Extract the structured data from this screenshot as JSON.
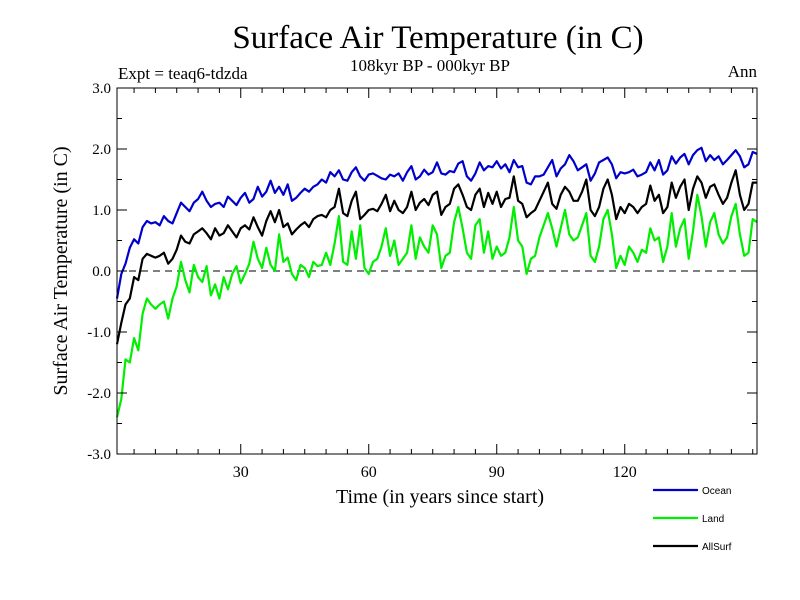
{
  "chart_data": {
    "type": "line",
    "title": "Surface Air Temperature (in C)",
    "subtitle": "108kyr BP - 000kyr BP",
    "experiment_label": "Expt = teaq6-tdzda",
    "period_label": "Ann",
    "xlabel": "Time (in years since start)",
    "ylabel": "Surface Air Temperature (in C)",
    "xlim": [
      1,
      151
    ],
    "ylim": [
      -3.0,
      3.0
    ],
    "x_ticks": [
      30,
      60,
      90,
      120
    ],
    "x_tick_labels": [
      "30",
      "60",
      "90",
      "120"
    ],
    "y_ticks": [
      -3.0,
      -2.0,
      -1.0,
      0.0,
      1.0,
      2.0,
      3.0
    ],
    "y_tick_labels": [
      "-3.0",
      "-2.0",
      "-1.0",
      "0.0",
      "1.0",
      "2.0",
      "3.0"
    ],
    "zero_line": true,
    "grid": false,
    "legend_position": "bottom-right",
    "x_start": 1,
    "x_step": 1,
    "series": [
      {
        "name": "Ocean",
        "color": "#0000cc",
        "values": [
          -0.45,
          -0.05,
          0.12,
          0.38,
          0.52,
          0.45,
          0.72,
          0.82,
          0.78,
          0.8,
          0.75,
          0.9,
          0.82,
          0.78,
          0.95,
          1.12,
          1.05,
          0.98,
          1.12,
          1.18,
          1.3,
          1.15,
          1.05,
          1.1,
          1.12,
          1.05,
          1.22,
          1.15,
          1.08,
          1.2,
          1.28,
          1.12,
          1.18,
          1.38,
          1.22,
          1.3,
          1.48,
          1.28,
          1.38,
          1.25,
          1.42,
          1.15,
          1.2,
          1.28,
          1.35,
          1.3,
          1.38,
          1.42,
          1.5,
          1.45,
          1.62,
          1.55,
          1.65,
          1.5,
          1.48,
          1.62,
          1.7,
          1.55,
          1.48,
          1.58,
          1.6,
          1.56,
          1.52,
          1.5,
          1.58,
          1.55,
          1.6,
          1.48,
          1.62,
          1.72,
          1.5,
          1.55,
          1.66,
          1.58,
          1.62,
          1.78,
          1.6,
          1.58,
          1.64,
          1.62,
          1.76,
          1.8,
          1.55,
          1.48,
          1.6,
          1.78,
          1.65,
          1.72,
          1.7,
          1.8,
          1.68,
          1.75,
          1.62,
          1.82,
          1.7,
          1.72,
          1.45,
          1.42,
          1.55,
          1.55,
          1.58,
          1.7,
          1.82,
          1.55,
          1.68,
          1.75,
          1.9,
          1.8,
          1.65,
          1.7,
          1.75,
          1.48,
          1.6,
          1.78,
          1.82,
          1.86,
          1.75,
          1.52,
          1.62,
          1.6,
          1.62,
          1.66,
          1.55,
          1.58,
          1.62,
          1.78,
          1.65,
          1.82,
          1.58,
          1.65,
          1.88,
          1.76,
          1.86,
          1.92,
          1.75,
          1.9,
          1.98,
          2.02,
          1.8,
          1.9,
          1.82,
          1.88,
          1.75,
          1.82,
          1.9,
          1.98,
          1.88,
          1.7,
          1.75,
          1.95,
          1.92
        ]
      },
      {
        "name": "Land",
        "color": "#00ee00",
        "values": [
          -2.4,
          -2.1,
          -1.45,
          -1.5,
          -1.1,
          -1.3,
          -0.7,
          -0.45,
          -0.55,
          -0.62,
          -0.55,
          -0.5,
          -0.78,
          -0.45,
          -0.25,
          0.15,
          -0.15,
          -0.35,
          0.1,
          -0.1,
          -0.18,
          0.08,
          -0.4,
          -0.22,
          -0.45,
          -0.1,
          -0.3,
          -0.05,
          0.08,
          -0.2,
          -0.05,
          0.12,
          0.48,
          0.2,
          0.05,
          0.38,
          0.1,
          0.0,
          0.6,
          0.15,
          0.22,
          -0.05,
          -0.15,
          0.1,
          0.05,
          -0.1,
          0.15,
          0.08,
          0.1,
          0.3,
          0.1,
          0.45,
          0.9,
          0.15,
          0.1,
          0.65,
          0.2,
          0.75,
          0.05,
          -0.05,
          0.15,
          0.2,
          0.4,
          0.7,
          0.25,
          0.5,
          0.1,
          0.2,
          0.3,
          0.75,
          0.2,
          0.55,
          0.4,
          0.3,
          0.75,
          0.6,
          0.05,
          0.25,
          0.3,
          0.8,
          1.05,
          0.7,
          0.3,
          0.2,
          0.75,
          0.85,
          0.3,
          0.65,
          0.2,
          0.4,
          0.25,
          0.3,
          0.55,
          1.05,
          0.5,
          0.4,
          -0.05,
          0.2,
          0.25,
          0.55,
          0.75,
          0.95,
          0.7,
          0.4,
          0.7,
          1.0,
          0.6,
          0.5,
          0.55,
          0.75,
          0.95,
          0.25,
          0.15,
          0.4,
          0.85,
          1.0,
          0.6,
          0.05,
          0.25,
          0.1,
          0.4,
          0.3,
          0.15,
          0.35,
          0.3,
          0.7,
          0.5,
          0.55,
          0.15,
          0.4,
          0.95,
          0.4,
          0.7,
          0.85,
          0.2,
          0.65,
          1.25,
          0.9,
          0.4,
          0.8,
          0.95,
          0.6,
          0.45,
          0.55,
          0.9,
          1.1,
          0.6,
          0.25,
          0.3,
          0.85,
          0.8
        ]
      },
      {
        "name": "AllSurf",
        "color": "#000000",
        "values": [
          -1.2,
          -0.85,
          -0.55,
          -0.45,
          -0.1,
          -0.15,
          0.2,
          0.28,
          0.25,
          0.22,
          0.25,
          0.3,
          0.12,
          0.2,
          0.35,
          0.58,
          0.48,
          0.45,
          0.6,
          0.65,
          0.7,
          0.62,
          0.52,
          0.7,
          0.58,
          0.62,
          0.75,
          0.65,
          0.55,
          0.7,
          0.75,
          0.68,
          0.88,
          0.72,
          0.58,
          0.82,
          0.98,
          0.8,
          1.0,
          0.72,
          0.78,
          0.6,
          0.68,
          0.75,
          0.8,
          0.72,
          0.85,
          0.9,
          0.92,
          0.88,
          1.0,
          1.05,
          1.35,
          0.95,
          0.9,
          1.15,
          1.3,
          0.85,
          0.92,
          1.0,
          1.02,
          0.98,
          1.1,
          1.25,
          0.98,
          1.15,
          1.0,
          0.95,
          1.05,
          1.3,
          1.0,
          1.12,
          1.18,
          1.08,
          1.25,
          1.3,
          0.92,
          1.05,
          1.1,
          1.35,
          1.42,
          1.25,
          1.05,
          1.0,
          1.25,
          1.35,
          1.05,
          1.28,
          1.1,
          1.3,
          1.05,
          1.18,
          1.2,
          1.55,
          1.15,
          1.1,
          0.88,
          0.95,
          1.0,
          1.15,
          1.3,
          1.45,
          1.1,
          1.02,
          1.25,
          1.38,
          1.3,
          1.15,
          1.15,
          1.3,
          1.5,
          1.0,
          0.9,
          1.05,
          1.35,
          1.5,
          1.25,
          0.85,
          1.05,
          0.95,
          1.1,
          1.05,
          0.95,
          1.05,
          1.1,
          1.4,
          1.15,
          1.25,
          0.95,
          1.05,
          1.45,
          1.2,
          1.38,
          1.5,
          1.0,
          1.35,
          1.55,
          1.45,
          1.2,
          1.38,
          1.42,
          1.25,
          1.1,
          1.2,
          1.45,
          1.65,
          1.25,
          1.0,
          1.1,
          1.45,
          1.45
        ]
      }
    ]
  }
}
